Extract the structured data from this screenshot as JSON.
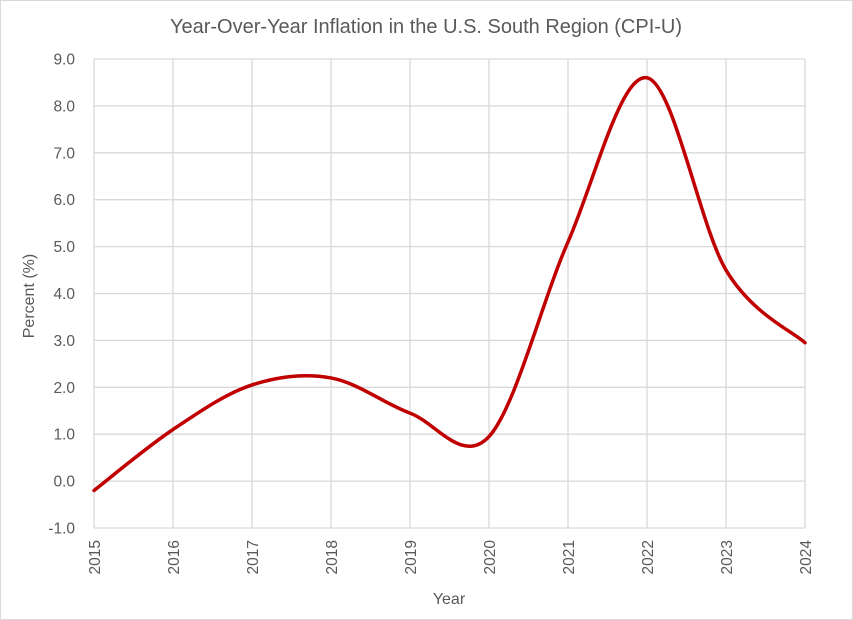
{
  "chart_data": {
    "type": "line",
    "title": "Year-Over-Year Inflation in the U.S. South Region (CPI-U)",
    "xlabel": "Year",
    "ylabel": "Percent (%)",
    "x": [
      2015,
      2016,
      2017,
      2018,
      2019,
      2020,
      2021,
      2022,
      2023,
      2024
    ],
    "x_tick_labels": [
      "2015",
      "2016",
      "2017",
      "2018",
      "2019",
      "2020",
      "2021",
      "2022",
      "2023",
      "2024"
    ],
    "y_tick_labels": [
      "-1.0",
      "0.0",
      "1.0",
      "2.0",
      "3.0",
      "4.0",
      "5.0",
      "6.0",
      "7.0",
      "8.0",
      "9.0"
    ],
    "y_ticks": [
      -1,
      0,
      1,
      2,
      3,
      4,
      5,
      6,
      7,
      8,
      9
    ],
    "ylim": [
      -1,
      9
    ],
    "xlim": [
      2015,
      2024
    ],
    "grid": true,
    "smoothed": true,
    "legend": "none",
    "series": [
      {
        "name": "South Region CPI-U YoY",
        "color": "#C00000",
        "values": [
          -0.2,
          1.1,
          2.05,
          2.2,
          1.45,
          0.95,
          5.1,
          8.6,
          4.5,
          2.95
        ]
      }
    ]
  }
}
